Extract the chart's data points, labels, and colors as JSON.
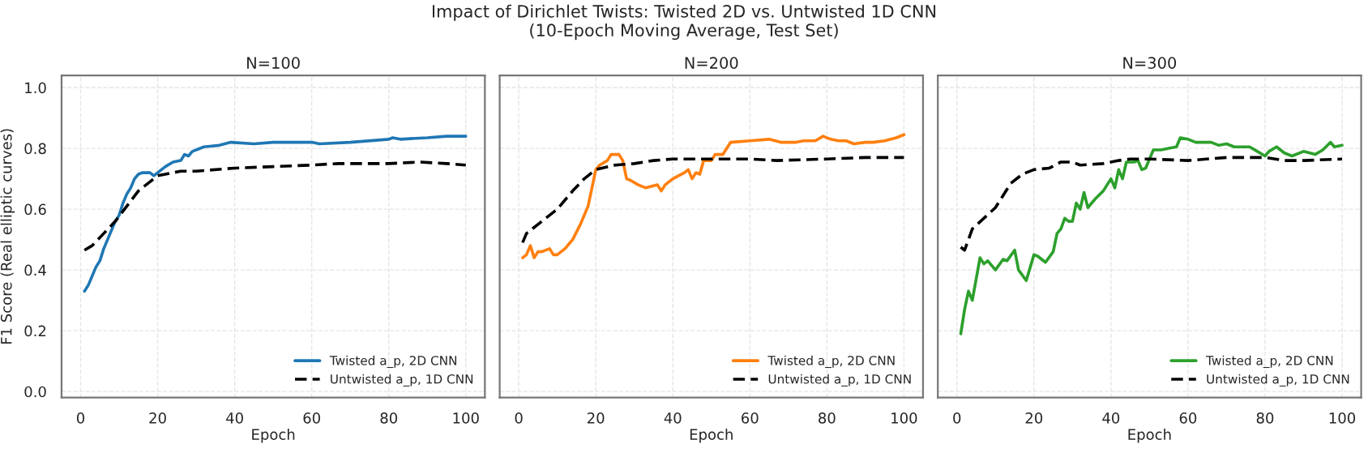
{
  "chart_data": [
    {
      "type": "line",
      "title": "N=100",
      "annotations": [
        "Impact of Dirichlet Twists: Twisted 2D vs. Untwisted 1D CNN\n(10-Epoch Moving Average, Test Set)"
      ],
      "xlabel": "Epoch",
      "ylabel": "F1 Score (Real elliptic curves)",
      "xlim": [
        -4.95,
        104.95
      ],
      "xticks": [
        0,
        20,
        40,
        60,
        80,
        100
      ],
      "ylim": [
        -0.02,
        1.04
      ],
      "yticks": [
        {
          "value": 0,
          "label": "0.0"
        },
        0.2,
        0.4,
        0.6,
        0.8,
        {
          "value": 1,
          "label": "1.0"
        }
      ],
      "grid": true,
      "legend": "bottom right",
      "marker": "none",
      "series": [
        {
          "name": "Twisted a_p, 2D CNN",
          "color": "#1f77b4",
          "line_style": "solid",
          "x": [
            1,
            2,
            3,
            4,
            5,
            6,
            7,
            8,
            9,
            10,
            11,
            12,
            13,
            14,
            15,
            16,
            18,
            19,
            20,
            22,
            24,
            26,
            27,
            28,
            29,
            32,
            36,
            39,
            45,
            50,
            60,
            62,
            70,
            80,
            81,
            83,
            90,
            95,
            100
          ],
          "values": [
            0.33,
            0.35,
            0.38,
            0.41,
            0.43,
            0.47,
            0.5,
            0.53,
            0.56,
            0.58,
            0.62,
            0.65,
            0.67,
            0.7,
            0.715,
            0.72,
            0.72,
            0.71,
            0.72,
            0.74,
            0.755,
            0.76,
            0.78,
            0.775,
            0.79,
            0.805,
            0.81,
            0.82,
            0.815,
            0.82,
            0.82,
            0.815,
            0.82,
            0.83,
            0.835,
            0.83,
            0.835,
            0.84,
            0.84
          ]
        },
        {
          "name": "Untwisted a_p, 1D CNN",
          "color": "#000000",
          "line_style": "dashed",
          "x": [
            1,
            3,
            6,
            9,
            12,
            15,
            18,
            20,
            22,
            26,
            30,
            40,
            50,
            60,
            67,
            80,
            88,
            95,
            100
          ],
          "values": [
            0.465,
            0.48,
            0.52,
            0.56,
            0.61,
            0.66,
            0.69,
            0.71,
            0.715,
            0.725,
            0.725,
            0.735,
            0.74,
            0.745,
            0.75,
            0.75,
            0.755,
            0.75,
            0.745
          ]
        }
      ]
    },
    {
      "type": "line",
      "title": "N=200",
      "xlabel": "Epoch",
      "xlim": [
        -4.95,
        104.95
      ],
      "xticks": [
        0,
        20,
        40,
        60,
        80,
        100
      ],
      "ylim": [
        -0.02,
        1.04
      ],
      "yticks": [
        0,
        0.2,
        0.4,
        0.6,
        0.8,
        1
      ],
      "tick_labels": "x",
      "grid": true,
      "legend": "bottom right",
      "marker": "none",
      "series": [
        {
          "name": "Twisted a_p, 2D CNN",
          "color": "#ff7f0e",
          "line_style": "solid",
          "x": [
            1,
            2,
            3,
            4,
            5,
            6,
            8,
            9,
            10,
            12,
            13,
            14,
            16,
            18,
            20,
            21,
            23,
            24,
            26,
            27,
            28,
            29,
            31,
            33,
            36,
            37,
            38,
            40,
            43,
            44,
            45,
            46,
            47,
            48,
            50,
            51,
            53,
            55,
            60,
            65,
            68,
            72,
            74,
            77,
            79,
            81,
            83,
            85,
            87,
            90,
            92,
            95,
            98,
            100
          ],
          "values": [
            0.44,
            0.45,
            0.48,
            0.44,
            0.46,
            0.46,
            0.47,
            0.45,
            0.45,
            0.47,
            0.485,
            0.5,
            0.55,
            0.61,
            0.73,
            0.745,
            0.76,
            0.78,
            0.78,
            0.76,
            0.7,
            0.695,
            0.68,
            0.67,
            0.68,
            0.66,
            0.68,
            0.7,
            0.72,
            0.73,
            0.7,
            0.72,
            0.715,
            0.76,
            0.76,
            0.78,
            0.78,
            0.82,
            0.825,
            0.83,
            0.82,
            0.82,
            0.825,
            0.825,
            0.84,
            0.83,
            0.825,
            0.825,
            0.815,
            0.82,
            0.82,
            0.825,
            0.835,
            0.845
          ]
        },
        {
          "name": "Untwisted a_p, 1D CNN",
          "color": "#000000",
          "line_style": "dashed",
          "x": [
            1,
            2,
            5,
            8,
            10,
            14,
            17,
            20,
            25,
            30,
            35,
            40,
            50,
            60,
            67,
            80,
            90,
            100
          ],
          "values": [
            0.49,
            0.52,
            0.55,
            0.58,
            0.6,
            0.66,
            0.7,
            0.73,
            0.745,
            0.75,
            0.76,
            0.765,
            0.765,
            0.765,
            0.76,
            0.765,
            0.77,
            0.77
          ]
        }
      ]
    },
    {
      "type": "line",
      "title": "N=300",
      "xlabel": "Epoch",
      "xlim": [
        -4.95,
        104.95
      ],
      "xticks": [
        0,
        20,
        40,
        60,
        80,
        100
      ],
      "ylim": [
        -0.02,
        1.04
      ],
      "yticks": [
        0,
        0.2,
        0.4,
        0.6,
        0.8,
        1
      ],
      "tick_labels": "x",
      "grid": true,
      "legend": "bottom right",
      "marker": "none",
      "series": [
        {
          "name": "Twisted a_p, 2D CNN",
          "color": "#2ca02c",
          "line_style": "solid",
          "x": [
            1,
            2,
            3,
            4,
            5,
            6,
            7,
            8,
            10,
            12,
            13,
            15,
            16,
            18,
            20,
            21,
            23,
            25,
            26,
            27,
            28,
            29,
            30,
            31,
            32,
            33,
            34,
            36,
            38,
            40,
            41,
            42,
            43,
            44,
            46,
            47,
            48,
            49,
            51,
            53,
            55,
            57,
            58,
            60,
            62,
            66,
            68,
            70,
            72,
            76,
            78,
            80,
            81,
            83,
            85,
            87,
            90,
            93,
            95,
            97,
            98,
            100
          ],
          "values": [
            0.19,
            0.27,
            0.33,
            0.3,
            0.37,
            0.44,
            0.42,
            0.43,
            0.4,
            0.435,
            0.43,
            0.465,
            0.4,
            0.365,
            0.45,
            0.445,
            0.425,
            0.46,
            0.52,
            0.535,
            0.57,
            0.56,
            0.56,
            0.62,
            0.6,
            0.655,
            0.605,
            0.635,
            0.66,
            0.7,
            0.67,
            0.73,
            0.7,
            0.755,
            0.755,
            0.76,
            0.73,
            0.735,
            0.795,
            0.795,
            0.8,
            0.805,
            0.835,
            0.83,
            0.82,
            0.82,
            0.81,
            0.815,
            0.805,
            0.805,
            0.79,
            0.775,
            0.79,
            0.805,
            0.785,
            0.775,
            0.79,
            0.78,
            0.795,
            0.82,
            0.805,
            0.81
          ]
        },
        {
          "name": "Untwisted a_p, 1D CNN",
          "color": "#000000",
          "line_style": "dashed",
          "x": [
            1,
            2,
            4,
            7,
            10,
            12,
            14,
            17,
            20,
            24,
            27,
            30,
            32,
            38,
            42,
            45,
            50,
            60,
            70,
            80,
            85,
            90,
            100
          ],
          "values": [
            0.475,
            0.465,
            0.535,
            0.57,
            0.605,
            0.645,
            0.685,
            0.715,
            0.73,
            0.735,
            0.755,
            0.755,
            0.745,
            0.75,
            0.76,
            0.765,
            0.765,
            0.76,
            0.77,
            0.77,
            0.76,
            0.76,
            0.765
          ]
        }
      ]
    }
  ]
}
